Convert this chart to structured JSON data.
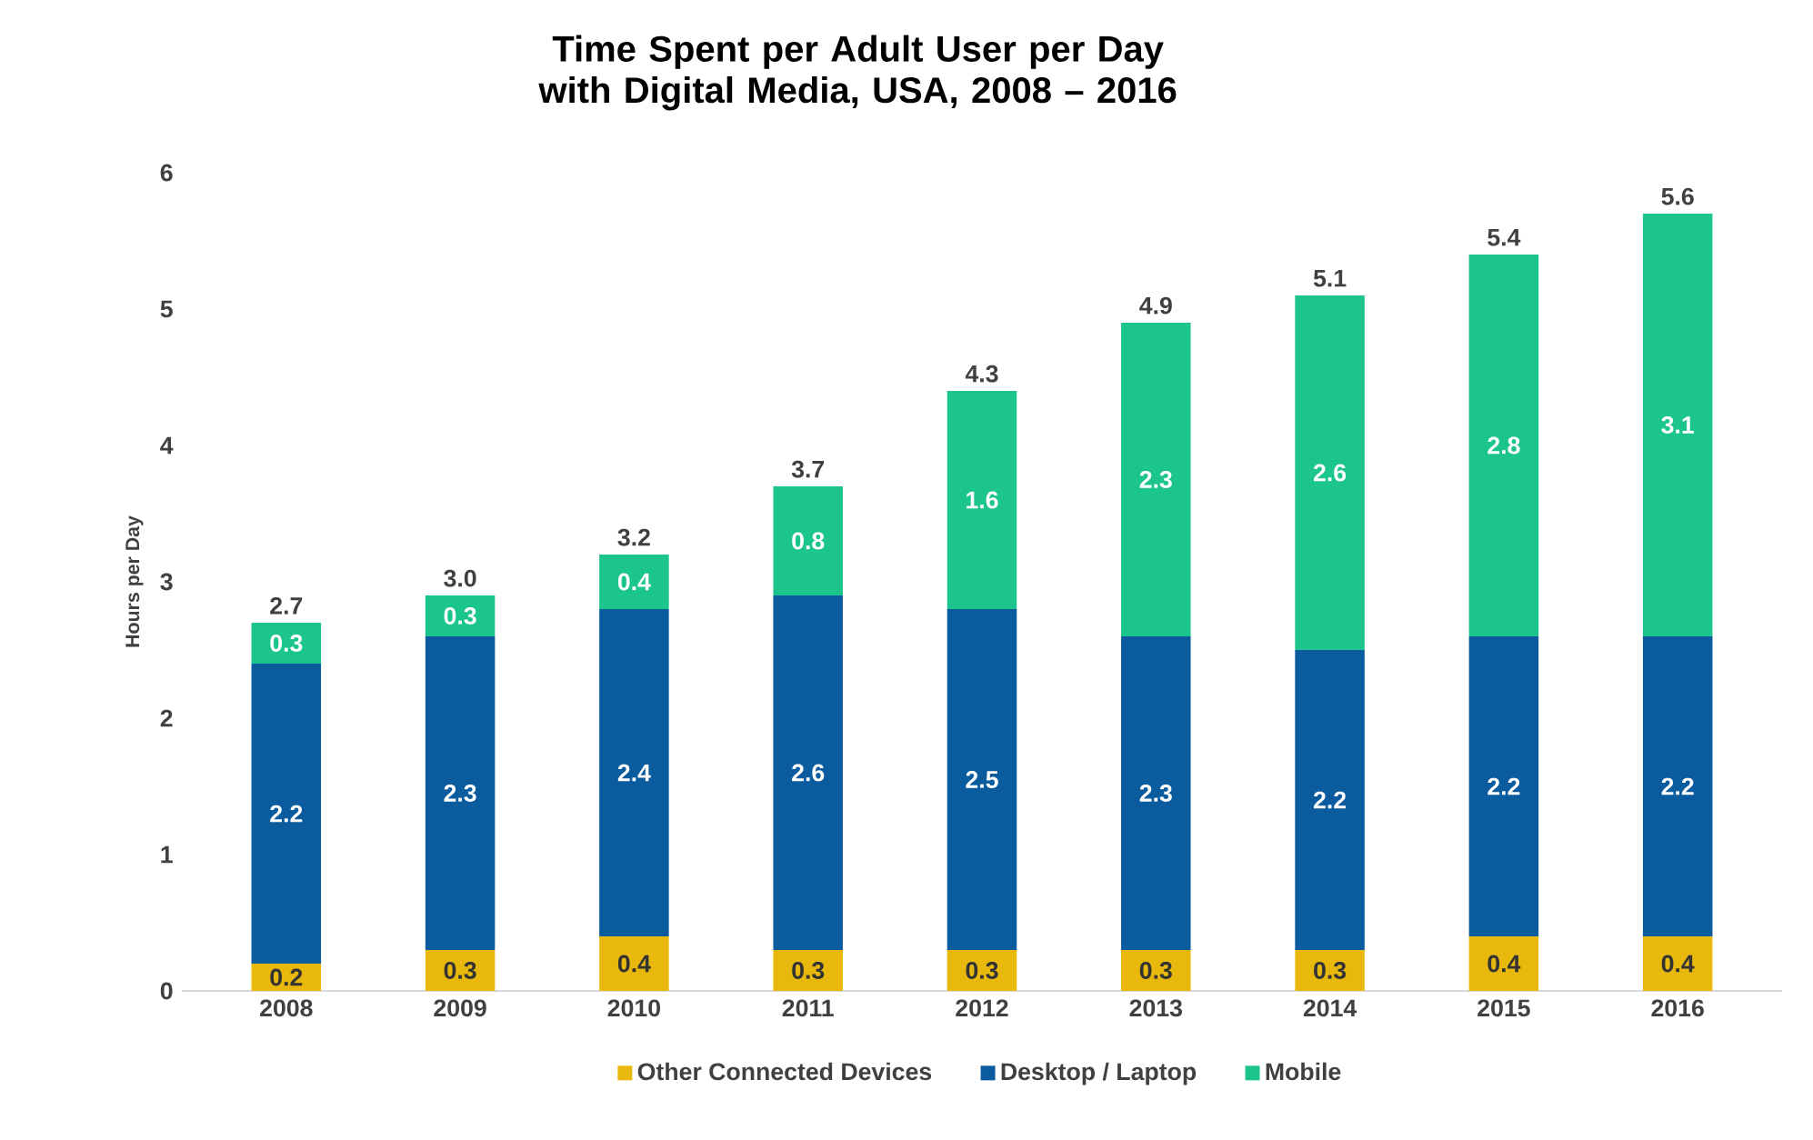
{
  "chart_data": {
    "type": "bar",
    "stacked": true,
    "title": "Time Spent per Adult User per Day with Digital Media, USA, 2008 – 2016",
    "ylabel": "Hours per Day",
    "categories": [
      "2008",
      "2009",
      "2010",
      "2011",
      "2012",
      "2013",
      "2014",
      "2015",
      "2016"
    ],
    "series": [
      {
        "name": "Other Connected Devices",
        "color": "#e8b90c",
        "values": [
          0.2,
          0.3,
          0.4,
          0.3,
          0.3,
          0.3,
          0.3,
          0.4,
          0.4
        ]
      },
      {
        "name": "Desktop / Laptop",
        "color": "#0b5c9e",
        "values": [
          2.2,
          2.3,
          2.4,
          2.6,
          2.5,
          2.3,
          2.2,
          2.2,
          2.2
        ]
      },
      {
        "name": "Mobile",
        "color": "#1cc58c",
        "values": [
          0.3,
          0.3,
          0.4,
          0.8,
          1.6,
          2.3,
          2.6,
          2.8,
          3.1
        ]
      }
    ],
    "totals": [
      "2.7",
      "3.0",
      "3.2",
      "3.7",
      "4.3",
      "4.9",
      "5.1",
      "5.4",
      "5.6"
    ],
    "data_labels": true,
    "ylim": [
      0,
      6
    ],
    "yticks": [
      0,
      1,
      2,
      3,
      4,
      5,
      6
    ],
    "legend": "bottom",
    "grid": false
  }
}
